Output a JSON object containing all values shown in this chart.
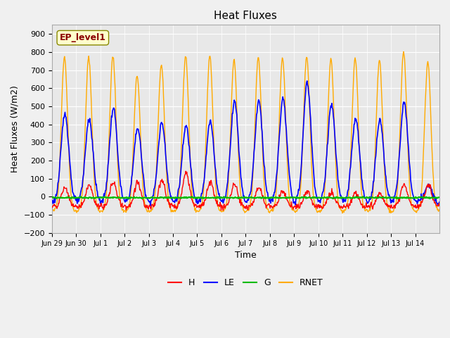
{
  "title": "Heat Fluxes",
  "xlabel": "Time",
  "ylabel": "Heat Fluxes (W/m2)",
  "ylim": [
    -200,
    950
  ],
  "yticks": [
    -200,
    -100,
    0,
    100,
    200,
    300,
    400,
    500,
    600,
    700,
    800,
    900
  ],
  "annotation": "EP_level1",
  "bg_color": "#e8e8e8",
  "fig_color": "#f0f0f0",
  "colors": {
    "H": "#ff0000",
    "LE": "#0000ff",
    "G": "#00bb00",
    "RNET": "#ffaa00"
  },
  "x_tick_labels": [
    "Jun 29",
    "Jun 30",
    "Jul 1",
    "Jul 2",
    "Jul 3",
    "Jul 4",
    "Jul 5",
    "Jul 6",
    "Jul 7",
    "Jul 8",
    "Jul 9",
    "Jul 10",
    "Jul 11",
    "Jul 12",
    "Jul 13",
    "Jul 14"
  ],
  "rnet_peaks": [
    775,
    770,
    775,
    670,
    730,
    780,
    775,
    755,
    770,
    770,
    775,
    760,
    765,
    755,
    800,
    745
  ],
  "le_peaks": [
    460,
    430,
    490,
    380,
    410,
    390,
    415,
    530,
    530,
    540,
    630,
    510,
    430,
    425,
    520,
    60
  ],
  "h_peaks": [
    50,
    60,
    80,
    80,
    90,
    130,
    80,
    70,
    50,
    25,
    25,
    25,
    20,
    20,
    70,
    65
  ],
  "n_days": 16,
  "n_per_day": 48
}
